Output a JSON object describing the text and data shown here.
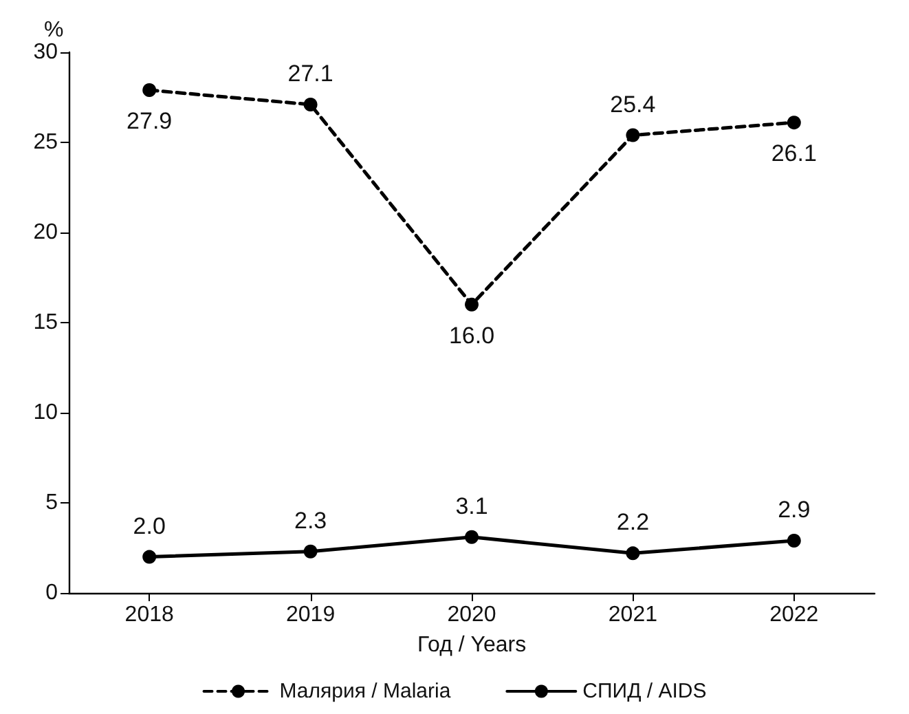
{
  "chart_data": {
    "type": "line",
    "categories": [
      "2018",
      "2019",
      "2020",
      "2021",
      "2022"
    ],
    "xlabel": "Год / Years",
    "ylabel": "%",
    "ylim": [
      0,
      30
    ],
    "yticks": [
      0,
      5,
      10,
      15,
      20,
      25,
      30
    ],
    "grid": false,
    "legend": "bottom",
    "marker": "circle",
    "series": [
      {
        "name": "Малярия / Malaria",
        "color": "#000000",
        "line_style": "dashed",
        "values": [
          27.9,
          27.1,
          16.0,
          25.4,
          26.1
        ],
        "value_labels": [
          "27.9",
          "27.1",
          "16.0",
          "25.4",
          "26.1"
        ]
      },
      {
        "name": "СПИД / AIDS",
        "color": "#000000",
        "line_style": "solid",
        "values": [
          2.0,
          2.3,
          3.1,
          2.2,
          2.9
        ],
        "value_labels": [
          "2.0",
          "2.3",
          "3.1",
          "2.2",
          "2.9"
        ]
      }
    ]
  }
}
